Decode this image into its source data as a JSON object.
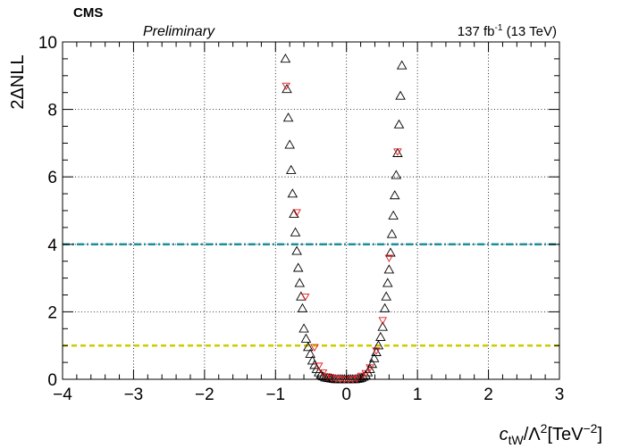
{
  "header": {
    "experiment": "CMS",
    "status": "Preliminary",
    "lumi": "137 fb",
    "lumi_exp": "-1",
    "energy": " (13 TeV)"
  },
  "chart_data": {
    "type": "scatter",
    "title": "",
    "ylabel": "2ΔNLL",
    "xlabel": {
      "prefix": "c",
      "sub": "tW",
      "mid": "/Λ",
      "sup": "2",
      "unit_open": "[TeV",
      "unit_sup": "−2",
      "unit_close": "]"
    },
    "xlim": [
      -4,
      3
    ],
    "ylim": [
      0,
      10
    ],
    "grid": true,
    "x_ticks": [
      {
        "value": -4,
        "label": "−4"
      },
      {
        "value": -3,
        "label": "−3"
      },
      {
        "value": -2,
        "label": "−2"
      },
      {
        "value": -1,
        "label": "−1"
      },
      {
        "value": 0,
        "label": "0"
      },
      {
        "value": 1,
        "label": "1"
      },
      {
        "value": 2,
        "label": "2"
      },
      {
        "value": 3,
        "label": "3"
      }
    ],
    "y_ticks": [
      {
        "value": 0,
        "label": "0"
      },
      {
        "value": 2,
        "label": "2"
      },
      {
        "value": 4,
        "label": "4"
      },
      {
        "value": 6,
        "label": "6"
      },
      {
        "value": 8,
        "label": "8"
      },
      {
        "value": 10,
        "label": "10"
      }
    ],
    "reference_lines": [
      {
        "y": 4,
        "color": "#1f8f9a",
        "style": "dash-dot"
      },
      {
        "y": 1,
        "color": "#cccc00",
        "style": "dashed"
      }
    ],
    "series": [
      {
        "marker": "triangle-up-open",
        "color": "#000000",
        "x": [
          -0.86,
          -0.84,
          -0.82,
          -0.8,
          -0.78,
          -0.76,
          -0.74,
          -0.72,
          -0.7,
          -0.68,
          -0.66,
          -0.64,
          -0.62,
          -0.6,
          -0.57,
          -0.54,
          -0.51,
          -0.48,
          -0.45,
          -0.42,
          -0.39,
          -0.36,
          -0.33,
          -0.3,
          -0.27,
          -0.24,
          -0.21,
          -0.18,
          -0.15,
          -0.12,
          -0.09,
          -0.06,
          -0.03,
          0.0,
          0.03,
          0.06,
          0.09,
          0.12,
          0.15,
          0.18,
          0.21,
          0.24,
          0.27,
          0.3,
          0.33,
          0.36,
          0.39,
          0.42,
          0.45,
          0.48,
          0.51,
          0.54,
          0.56,
          0.58,
          0.6,
          0.62,
          0.64,
          0.66,
          0.68,
          0.7,
          0.72,
          0.74,
          0.76,
          0.78
        ],
        "y": [
          9.5,
          8.6,
          7.75,
          6.95,
          6.2,
          5.5,
          4.9,
          4.35,
          3.8,
          3.3,
          2.85,
          2.45,
          2.1,
          1.5,
          1.2,
          0.95,
          0.75,
          0.55,
          0.42,
          0.3,
          0.2,
          0.13,
          0.08,
          0.05,
          0.04,
          0.03,
          0.02,
          0.01,
          0.0,
          0.0,
          0.0,
          0.0,
          0.0,
          0.0,
          0.0,
          0.0,
          0.0,
          0.0,
          0.01,
          0.02,
          0.04,
          0.07,
          0.12,
          0.2,
          0.3,
          0.45,
          0.62,
          0.8,
          1.0,
          1.25,
          1.55,
          2.1,
          2.45,
          2.85,
          3.25,
          3.75,
          4.3,
          4.85,
          5.45,
          6.05,
          6.7,
          7.55,
          8.4,
          9.3
        ]
      },
      {
        "marker": "triangle-down-open",
        "color": "#e41a1c",
        "x": [
          -0.85,
          -0.7,
          -0.58,
          -0.45,
          -0.39,
          -0.33,
          -0.27,
          -0.21,
          -0.15,
          -0.09,
          -0.03,
          0.03,
          0.09,
          0.15,
          0.21,
          0.27,
          0.33,
          0.42,
          0.51,
          0.6,
          0.72
        ],
        "y": [
          8.7,
          4.95,
          2.45,
          0.95,
          0.4,
          0.2,
          0.08,
          0.04,
          0.02,
          0.01,
          0.0,
          0.0,
          0.0,
          0.02,
          0.1,
          0.18,
          0.35,
          0.85,
          1.75,
          3.6,
          6.75
        ]
      }
    ]
  }
}
